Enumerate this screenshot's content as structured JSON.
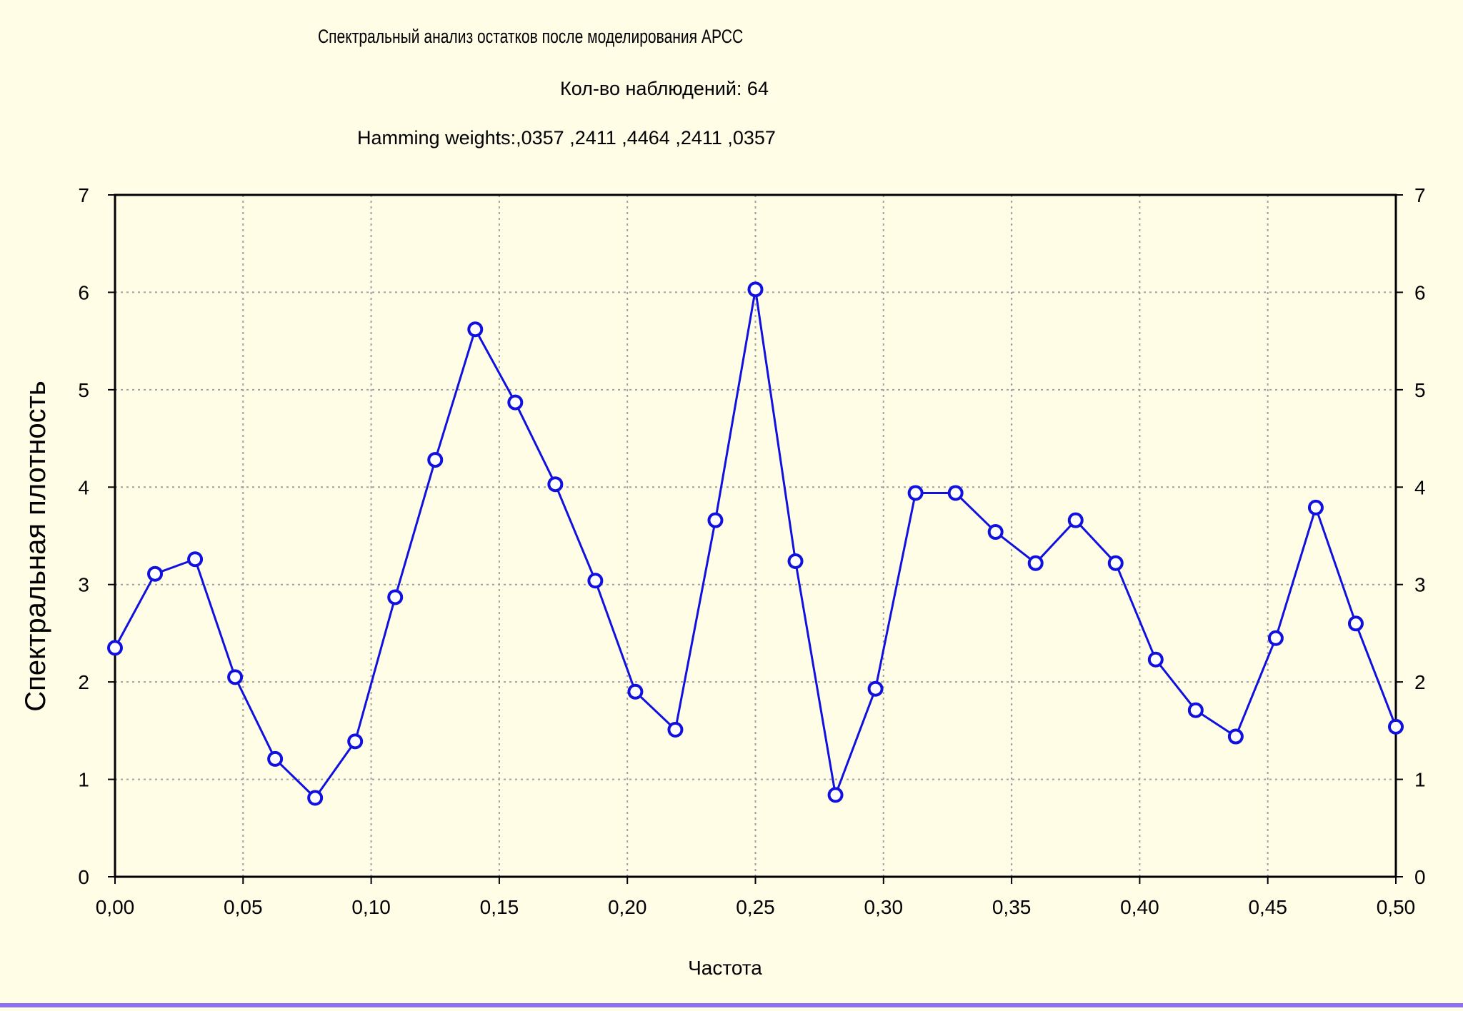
{
  "header": {
    "title": "Спектральный анализ остатков после моделирования АРСС",
    "observations": "Кол-во наблюдений: 64",
    "weights": "Hamming weights:,0357 ,2411 ,4464 ,2411 ,0357"
  },
  "colors": {
    "background": "#fffde6",
    "series": "#1010e0",
    "marker_fill": "#ffffff",
    "grid": "#a0a0a0",
    "bottom_strip": "#8e6ff2"
  },
  "chart_data": {
    "type": "line",
    "title": "Спектральный анализ остатков после моделирования АРСС",
    "xlabel": "Частота",
    "ylabel": "Спектральная плотность",
    "xlim": [
      0,
      0.5
    ],
    "ylim": [
      0,
      7
    ],
    "grid": true,
    "right_axis": true,
    "x_ticks": [
      "0,00",
      "0,05",
      "0,10",
      "0,15",
      "0,20",
      "0,25",
      "0,30",
      "0,35",
      "0,40",
      "0,45",
      "0,50"
    ],
    "x_tick_values": [
      0,
      0.05,
      0.1,
      0.15,
      0.2,
      0.25,
      0.3,
      0.35,
      0.4,
      0.45,
      0.5
    ],
    "y_ticks": [
      "0",
      "1",
      "2",
      "3",
      "4",
      "5",
      "6",
      "7"
    ],
    "y_tick_values": [
      0,
      1,
      2,
      3,
      4,
      5,
      6,
      7
    ],
    "series": [
      {
        "x": [
          0.0,
          0.015625,
          0.03125,
          0.046875,
          0.0625,
          0.078125,
          0.09375,
          0.109375,
          0.125,
          0.140625,
          0.15625,
          0.171875,
          0.1875,
          0.203125,
          0.21875,
          0.234375,
          0.25,
          0.265625,
          0.28125,
          0.296875,
          0.3125,
          0.328125,
          0.34375,
          0.359375,
          0.375,
          0.390625,
          0.40625,
          0.421875,
          0.4375,
          0.453125,
          0.46875,
          0.484375,
          0.5
        ],
        "y": [
          2.35,
          3.11,
          3.26,
          2.05,
          1.21,
          0.81,
          1.39,
          2.87,
          4.28,
          5.62,
          4.87,
          4.03,
          3.04,
          1.9,
          1.51,
          3.66,
          6.03,
          3.24,
          0.84,
          1.93,
          3.94,
          3.94,
          3.54,
          3.22,
          3.66,
          3.22,
          2.23,
          1.71,
          1.44,
          2.45,
          3.79,
          2.6,
          1.54
        ]
      }
    ]
  }
}
